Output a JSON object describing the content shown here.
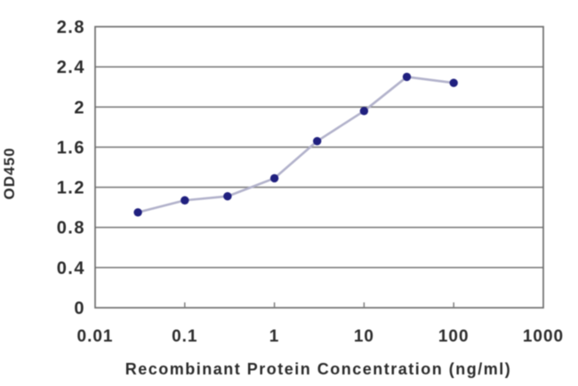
{
  "chart_data": {
    "type": "line",
    "title": "",
    "xlabel": "Recombinant Protein Concentration (ng/ml)",
    "ylabel": "OD450",
    "x_scale": "log",
    "xlim": [
      0.01,
      1000
    ],
    "ylim": [
      0,
      2.8
    ],
    "x_ticks": {
      "values": [
        0.01,
        0.1,
        1,
        10,
        100,
        1000
      ],
      "labels": [
        "0.01",
        "0.1",
        "1",
        "10",
        "100",
        "1000"
      ]
    },
    "y_ticks": {
      "values": [
        0,
        0.4,
        0.8,
        1.2,
        1.6,
        2,
        2.4,
        2.8
      ],
      "labels": [
        "0",
        "0.4",
        "0.8",
        "1.2",
        "1.6",
        "2",
        "2.4",
        "2.8"
      ]
    },
    "grid": "horizontal-only",
    "legend": "none",
    "series": [
      {
        "name": "OD450",
        "x": [
          0.03,
          0.1,
          0.3,
          1,
          3,
          10,
          30,
          100
        ],
        "y": [
          0.95,
          1.07,
          1.11,
          1.29,
          1.66,
          1.96,
          2.3,
          2.24
        ],
        "marker": "circle",
        "marker_color": "#20207f",
        "line_color": "#b2b2cb"
      }
    ],
    "colors": {
      "grid": "#7e7e7e",
      "border": "#6f6f6f",
      "text": "#2b2b2b",
      "background": "#ffffff"
    }
  }
}
